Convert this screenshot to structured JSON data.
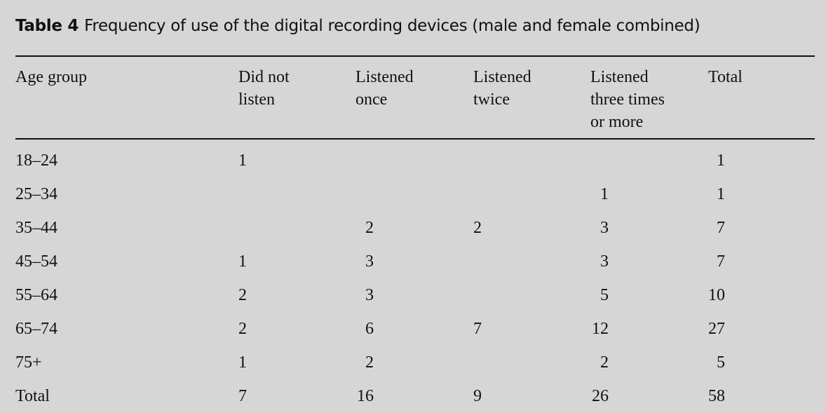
{
  "table": {
    "label": "Table 4",
    "caption": "Frequency of use of the digital recording devices (male and female combined)",
    "headers": [
      [
        "Age group"
      ],
      [
        "Did not",
        "listen"
      ],
      [
        "Listened",
        "once"
      ],
      [
        "Listened",
        "twice"
      ],
      [
        "Listened",
        "three times",
        "or more"
      ],
      [
        "Total"
      ]
    ],
    "rows": [
      [
        "18–24",
        "1",
        "",
        "",
        "",
        "1"
      ],
      [
        "25–34",
        "",
        "",
        "",
        "1",
        "1"
      ],
      [
        "35–44",
        "",
        "2",
        "2",
        "3",
        "7"
      ],
      [
        "45–54",
        "1",
        "3",
        "",
        "3",
        "7"
      ],
      [
        "55–64",
        "2",
        "3",
        "",
        "5",
        "10"
      ],
      [
        "65–74",
        "2",
        "6",
        "7",
        "12",
        "27"
      ],
      [
        "75+",
        "1",
        "2",
        "",
        "2",
        "5"
      ],
      [
        "Total",
        "7",
        "16",
        "9",
        "26",
        "58"
      ]
    ]
  }
}
